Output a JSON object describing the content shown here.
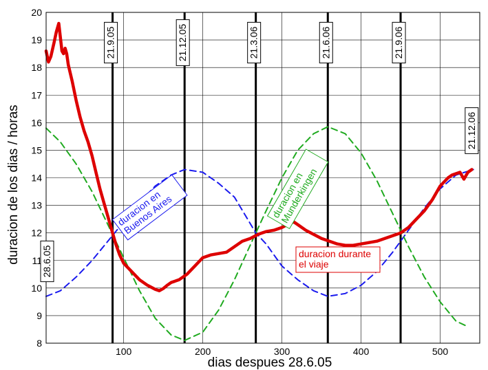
{
  "chart_data": {
    "type": "line",
    "xlabel": "dias despues 28.6.05",
    "ylabel": "duracion de los dias / horas",
    "xlim": [
      2,
      550
    ],
    "ylim": [
      8,
      20
    ],
    "xticks": [
      100,
      200,
      300,
      400,
      500
    ],
    "yticks": [
      8,
      9,
      10,
      11,
      12,
      13,
      14,
      15,
      16,
      17,
      18,
      19,
      20
    ],
    "grid": true,
    "date_markers": [
      {
        "x": 2,
        "label": "28.6.05"
      },
      {
        "x": 86,
        "label": "21.9.05"
      },
      {
        "x": 177,
        "label": "21.12.05"
      },
      {
        "x": 267,
        "label": "21.3.06"
      },
      {
        "x": 358,
        "label": "21.6.06"
      },
      {
        "x": 450,
        "label": "21.9.06"
      },
      {
        "x": 542,
        "label": "21.12.06"
      }
    ],
    "series": [
      {
        "name": "duracion durante el viaje",
        "color": "#dd0000",
        "style": "solid",
        "x": [
          2,
          5,
          8,
          12,
          15,
          18,
          20,
          22,
          24,
          26,
          28,
          30,
          35,
          40,
          45,
          50,
          55,
          60,
          65,
          70,
          75,
          80,
          85,
          90,
          95,
          100,
          110,
          120,
          130,
          140,
          145,
          150,
          155,
          160,
          170,
          180,
          190,
          200,
          210,
          220,
          230,
          240,
          250,
          260,
          270,
          280,
          290,
          300,
          310,
          315,
          320,
          330,
          340,
          350,
          360,
          370,
          380,
          390,
          400,
          410,
          420,
          430,
          440,
          450,
          460,
          470,
          480,
          490,
          500,
          510,
          515,
          520,
          525,
          530,
          535,
          540
        ],
        "values": [
          18.6,
          18.2,
          18.4,
          18.9,
          19.3,
          19.6,
          19.1,
          18.6,
          18.5,
          18.7,
          18.5,
          18.1,
          17.5,
          16.8,
          16.2,
          15.7,
          15.3,
          14.8,
          14.2,
          13.6,
          13.1,
          12.6,
          12.1,
          11.6,
          11.2,
          10.9,
          10.6,
          10.3,
          10.1,
          9.95,
          9.9,
          9.98,
          10.1,
          10.2,
          10.3,
          10.5,
          10.8,
          11.1,
          11.2,
          11.25,
          11.3,
          11.5,
          11.7,
          11.8,
          11.95,
          12.05,
          12.1,
          12.2,
          12.35,
          12.4,
          12.3,
          12.1,
          11.95,
          11.8,
          11.7,
          11.6,
          11.55,
          11.55,
          11.6,
          11.65,
          11.7,
          11.8,
          11.9,
          12.0,
          12.2,
          12.5,
          12.8,
          13.2,
          13.7,
          14.0,
          14.1,
          14.15,
          14.2,
          13.95,
          14.2,
          14.3
        ]
      },
      {
        "name": "duracion en Buenos Aires",
        "color": "#1a1aee",
        "style": "dashed",
        "x": [
          2,
          20,
          40,
          60,
          80,
          100,
          120,
          140,
          160,
          177,
          200,
          220,
          240,
          267,
          280,
          300,
          320,
          340,
          358,
          380,
          400,
          420,
          440,
          460,
          480,
          500,
          520,
          542
        ],
        "values": [
          9.7,
          9.9,
          10.4,
          11.0,
          11.7,
          12.4,
          13.1,
          13.7,
          14.1,
          14.3,
          14.2,
          13.8,
          13.3,
          12.0,
          11.6,
          10.8,
          10.3,
          9.9,
          9.7,
          9.8,
          10.1,
          10.6,
          11.3,
          12.1,
          12.9,
          13.6,
          14.1,
          14.3
        ]
      },
      {
        "name": "duracion en Munderkingen",
        "color": "#1faa1f",
        "style": "dashed",
        "x": [
          2,
          20,
          40,
          60,
          80,
          100,
          120,
          140,
          160,
          177,
          200,
          220,
          240,
          267,
          280,
          300,
          320,
          340,
          358,
          380,
          400,
          420,
          440,
          460,
          480,
          500,
          520,
          535
        ],
        "values": [
          15.8,
          15.3,
          14.5,
          13.5,
          12.3,
          11.1,
          9.9,
          8.9,
          8.3,
          8.1,
          8.4,
          9.2,
          10.3,
          12.0,
          12.8,
          14.0,
          15.0,
          15.6,
          15.85,
          15.6,
          14.9,
          13.9,
          12.7,
          11.5,
          10.4,
          9.5,
          8.8,
          8.6
        ]
      }
    ],
    "annotations": [
      {
        "text": "duracion en Buenos Aires",
        "lines": [
          "duracion en",
          "Buenos Aires"
        ],
        "color": "#1a1aee"
      },
      {
        "text": "duracion en Munderkingen",
        "lines": [
          "duracion en",
          "Munderkingen"
        ],
        "color": "#1faa1f"
      },
      {
        "text": "duracion durante el viaje",
        "lines": [
          "duracion durante",
          "el viaje"
        ],
        "color": "#dd0000"
      }
    ]
  }
}
